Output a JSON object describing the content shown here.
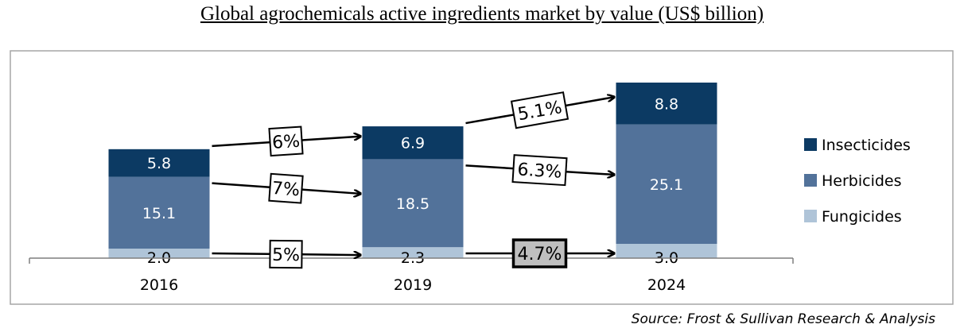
{
  "title": "Global agrochemicals active ingredients market by value (US$ billion)",
  "source": "Source: Frost & Sullivan Research & Analysis",
  "colors": {
    "insecticides": "#0c3a63",
    "herbicides": "#52729a",
    "fungicides": "#afc4d8"
  },
  "chart_data": {
    "type": "bar",
    "stacked": true,
    "categories": [
      "2016",
      "2019",
      "2024"
    ],
    "series": [
      {
        "name": "Fungicides",
        "values": [
          2.0,
          2.3,
          3.0
        ],
        "labels": [
          "2.0",
          "2.3",
          "3.0"
        ]
      },
      {
        "name": "Herbicides",
        "values": [
          15.1,
          18.5,
          25.1
        ],
        "labels": [
          "15.1",
          "18.5",
          "25.1"
        ]
      },
      {
        "name": "Insecticides",
        "values": [
          5.8,
          6.9,
          8.8
        ],
        "labels": [
          "5.8",
          "6.9",
          "8.8"
        ]
      }
    ],
    "legend": [
      "Insecticides",
      "Herbicides",
      "Fungicides"
    ],
    "legend_position": "right",
    "growth_annotations": [
      {
        "series": "Insecticides",
        "from": "2016",
        "to": "2019",
        "label": "6%"
      },
      {
        "series": "Herbicides",
        "from": "2016",
        "to": "2019",
        "label": "7%"
      },
      {
        "series": "Fungicides",
        "from": "2016",
        "to": "2019",
        "label": "5%"
      },
      {
        "series": "Insecticides",
        "from": "2019",
        "to": "2024",
        "label": "5.1%"
      },
      {
        "series": "Herbicides",
        "from": "2019",
        "to": "2024",
        "label": "6.3%"
      },
      {
        "series": "Fungicides",
        "from": "2019",
        "to": "2024",
        "label": "4.7%",
        "highlighted": true
      }
    ],
    "ylim": [
      0,
      37
    ],
    "grid": false
  }
}
